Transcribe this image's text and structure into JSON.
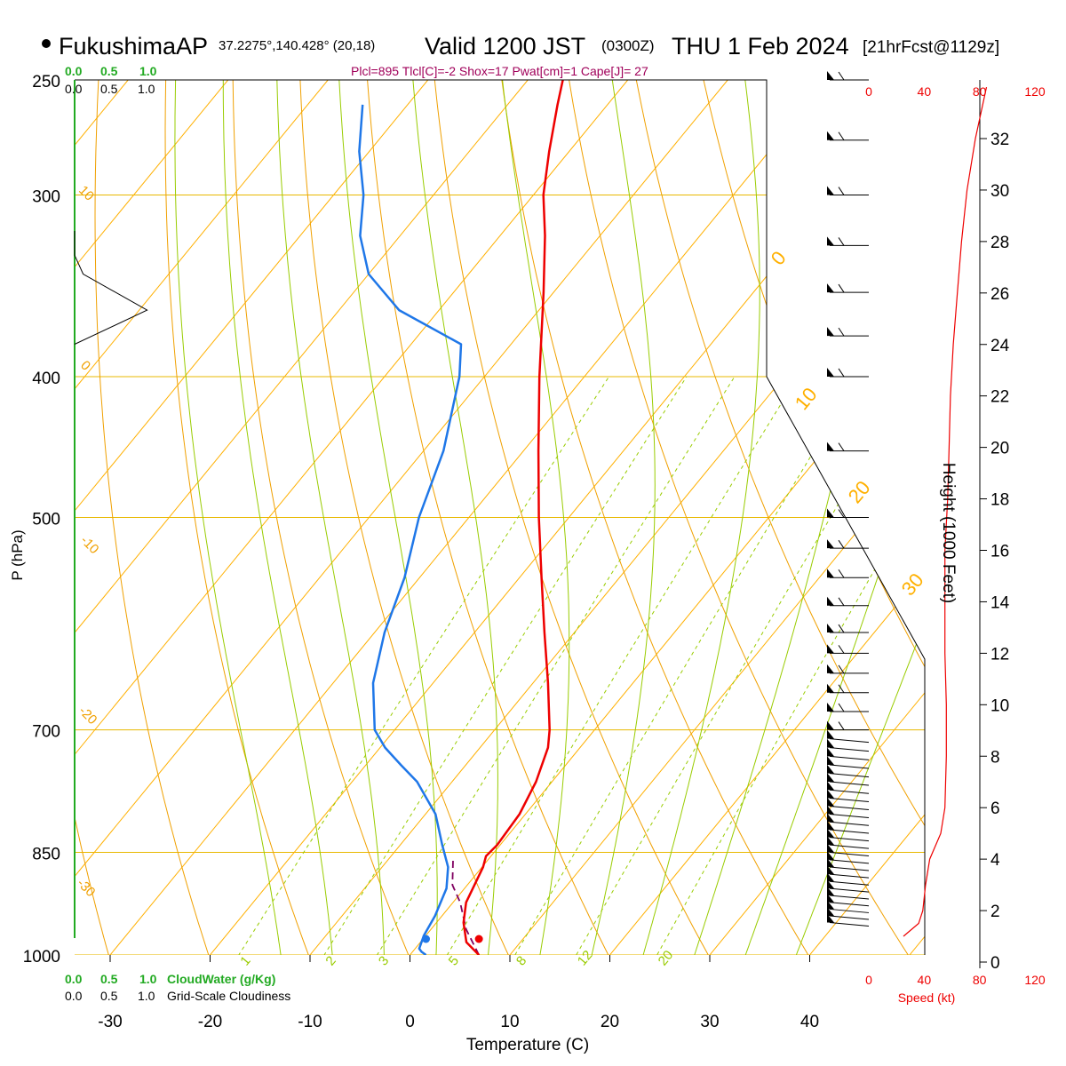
{
  "header": {
    "station": "FukushimaAP",
    "coords": "37.2275°,140.428° (20,18)",
    "valid": "Valid 1200 JST",
    "utc": "(0300Z)",
    "date": "THU 1 Feb 2024",
    "fcst": "[21hrFcst@1129z]",
    "indices": "Plcl=895 Tlcl[C]=-2 Shox=17 Pwat[cm]=1 Cape[J]= 27"
  },
  "labels": {
    "p_axis": "P (hPa)",
    "t_axis": "Temperature (C)",
    "h_axis": "Height (1000 Feet)",
    "speed": "Speed (kt)",
    "cloudwater": "CloudWater (g/Kg)",
    "cloudiness": "Grid-Scale Cloudiness"
  },
  "legend_scale": {
    "green": [
      "0.0",
      "0.5",
      "1.0"
    ],
    "black": [
      "0.0",
      "0.5",
      "1.0"
    ]
  },
  "colors": {
    "isobar": "#e8b800",
    "isotherm": "#ffb000",
    "dry_adiabat": "#f0a000",
    "moist_adiabat": "#99cc00",
    "mixing_ratio": "#99cc00",
    "temperature": "#ee0000",
    "dewpoint": "#1f77e8",
    "parcel": "#800060",
    "speed": "#ee0000",
    "cloud": "#22aa22",
    "header_indices": "#a0005a"
  },
  "chart_data": {
    "type": "skew-t",
    "pressure_levels": [
      250,
      300,
      400,
      500,
      700,
      850,
      1000
    ],
    "temperature_ticks": [
      -30,
      -20,
      -10,
      0,
      10,
      20,
      30,
      40
    ],
    "xlim": [
      -34,
      36
    ],
    "ylim": [
      250,
      1050
    ],
    "temperature_profile": [
      {
        "p": 1000,
        "t": 6.9
      },
      {
        "p": 980,
        "t": 4.6
      },
      {
        "p": 950,
        "t": 2.7
      },
      {
        "p": 920,
        "t": 1.3
      },
      {
        "p": 870,
        "t": 0.1
      },
      {
        "p": 855,
        "t": -0.5
      },
      {
        "p": 840,
        "t": -0.3
      },
      {
        "p": 800,
        "t": -0.6
      },
      {
        "p": 760,
        "t": -1.6
      },
      {
        "p": 720,
        "t": -3.2
      },
      {
        "p": 700,
        "t": -4.5
      },
      {
        "p": 650,
        "t": -8.5
      },
      {
        "p": 600,
        "t": -13.0
      },
      {
        "p": 550,
        "t": -17.8
      },
      {
        "p": 500,
        "t": -23.0
      },
      {
        "p": 450,
        "t": -28.5
      },
      {
        "p": 400,
        "t": -34.5
      },
      {
        "p": 350,
        "t": -41.0
      },
      {
        "p": 320,
        "t": -45.5
      },
      {
        "p": 300,
        "t": -49.0
      },
      {
        "p": 280,
        "t": -52.0
      },
      {
        "p": 260,
        "t": -55.0
      },
      {
        "p": 250,
        "t": -56.5
      }
    ],
    "dewpoint_profile": [
      {
        "p": 1000,
        "t": 1.6
      },
      {
        "p": 995,
        "t": 0.9
      },
      {
        "p": 990,
        "t": 0.4
      },
      {
        "p": 970,
        "t": -0.2
      },
      {
        "p": 940,
        "t": -0.7
      },
      {
        "p": 900,
        "t": -1.8
      },
      {
        "p": 870,
        "t": -3.4
      },
      {
        "p": 840,
        "t": -5.8
      },
      {
        "p": 800,
        "t": -9.0
      },
      {
        "p": 760,
        "t": -13.5
      },
      {
        "p": 740,
        "t": -16.5
      },
      {
        "p": 720,
        "t": -19.5
      },
      {
        "p": 700,
        "t": -22.0
      },
      {
        "p": 650,
        "t": -26.0
      },
      {
        "p": 600,
        "t": -29.0
      },
      {
        "p": 550,
        "t": -31.5
      },
      {
        "p": 500,
        "t": -35.0
      },
      {
        "p": 450,
        "t": -38.0
      },
      {
        "p": 400,
        "t": -42.5
      },
      {
        "p": 380,
        "t": -45.0
      },
      {
        "p": 360,
        "t": -54.0
      },
      {
        "p": 340,
        "t": -60.0
      },
      {
        "p": 320,
        "t": -64.0
      },
      {
        "p": 300,
        "t": -67.0
      },
      {
        "p": 280,
        "t": -71.0
      },
      {
        "p": 260,
        "t": -74.5
      }
    ],
    "parcel_profile": [
      {
        "p": 1000,
        "t": 6.9
      },
      {
        "p": 960,
        "t": 3.5
      },
      {
        "p": 920,
        "t": 0.7
      },
      {
        "p": 895,
        "t": -1.5
      },
      {
        "p": 860,
        "t": -3.5
      }
    ],
    "isotherm_labels": [
      "-30",
      "-20",
      "-10",
      "0",
      "10",
      "20",
      "30",
      "40"
    ],
    "dry_adiabat_labels": [
      "10",
      "0",
      "-10",
      "-20",
      "-30"
    ],
    "wet_labels": [
      "0",
      "10",
      "20",
      "30"
    ],
    "mixing_ratio_labels": [
      "1",
      "2",
      "3",
      "5",
      "8",
      "12",
      "20"
    ],
    "height_ticks": [
      "0",
      "2",
      "4",
      "6",
      "8",
      "10",
      "12",
      "14",
      "16",
      "18",
      "20",
      "22",
      "24",
      "26",
      "28",
      "30",
      "32"
    ],
    "speed_ticks": [
      "0",
      "40",
      "80",
      "120"
    ],
    "wind_speed_profile": [
      {
        "h": 1,
        "v": 25
      },
      {
        "h": 1.5,
        "v": 36
      },
      {
        "h": 2,
        "v": 39
      },
      {
        "h": 3,
        "v": 41
      },
      {
        "h": 4,
        "v": 44
      },
      {
        "h": 5,
        "v": 52
      },
      {
        "h": 6,
        "v": 55
      },
      {
        "h": 8,
        "v": 56
      },
      {
        "h": 10,
        "v": 56
      },
      {
        "h": 12,
        "v": 55
      },
      {
        "h": 14,
        "v": 55
      },
      {
        "h": 16,
        "v": 55
      },
      {
        "h": 18,
        "v": 57
      },
      {
        "h": 20,
        "v": 58
      },
      {
        "h": 22,
        "v": 59
      },
      {
        "h": 24,
        "v": 61
      },
      {
        "h": 26,
        "v": 64
      },
      {
        "h": 28,
        "v": 67
      },
      {
        "h": 30,
        "v": 71
      },
      {
        "h": 32,
        "v": 77
      },
      {
        "h": 34,
        "v": 85
      }
    ],
    "wind_barb_pressures": [
      950,
      940,
      930,
      920,
      910,
      900,
      890,
      880,
      870,
      860,
      850,
      840,
      830,
      820,
      810,
      800,
      790,
      780,
      770,
      760,
      750,
      740,
      730,
      720,
      710,
      700,
      680,
      660,
      640,
      620,
      600,
      575,
      550,
      525,
      500,
      450,
      400,
      375,
      350,
      325,
      300,
      275,
      250
    ],
    "cloudiness_profile": [
      {
        "p": 330,
        "c": 0.0
      },
      {
        "p": 340,
        "c": 0.1
      },
      {
        "p": 360,
        "c": 0.85
      },
      {
        "p": 380,
        "c": 0.0
      }
    ]
  }
}
